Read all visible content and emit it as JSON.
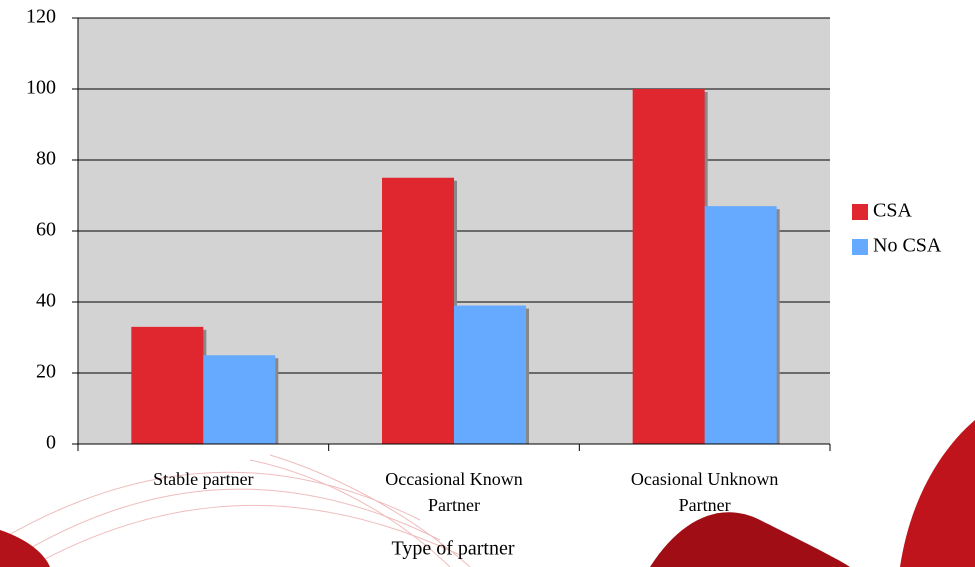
{
  "chart_data": {
    "type": "bar",
    "x_label": "Type of partner",
    "categories": [
      "Stable partner",
      "Occasional Known Partner",
      "Ocasional Unknown Partner"
    ],
    "series": [
      {
        "name": "CSA",
        "color": "#e0262e",
        "values": [
          33,
          75,
          100
        ]
      },
      {
        "name": "No CSA",
        "color": "#66aaff",
        "values": [
          25,
          39,
          67
        ]
      }
    ],
    "ylim": [
      0,
      120
    ],
    "yticks": [
      0,
      20,
      40,
      60,
      80,
      100,
      120
    ],
    "grid": true,
    "legend": "right"
  }
}
